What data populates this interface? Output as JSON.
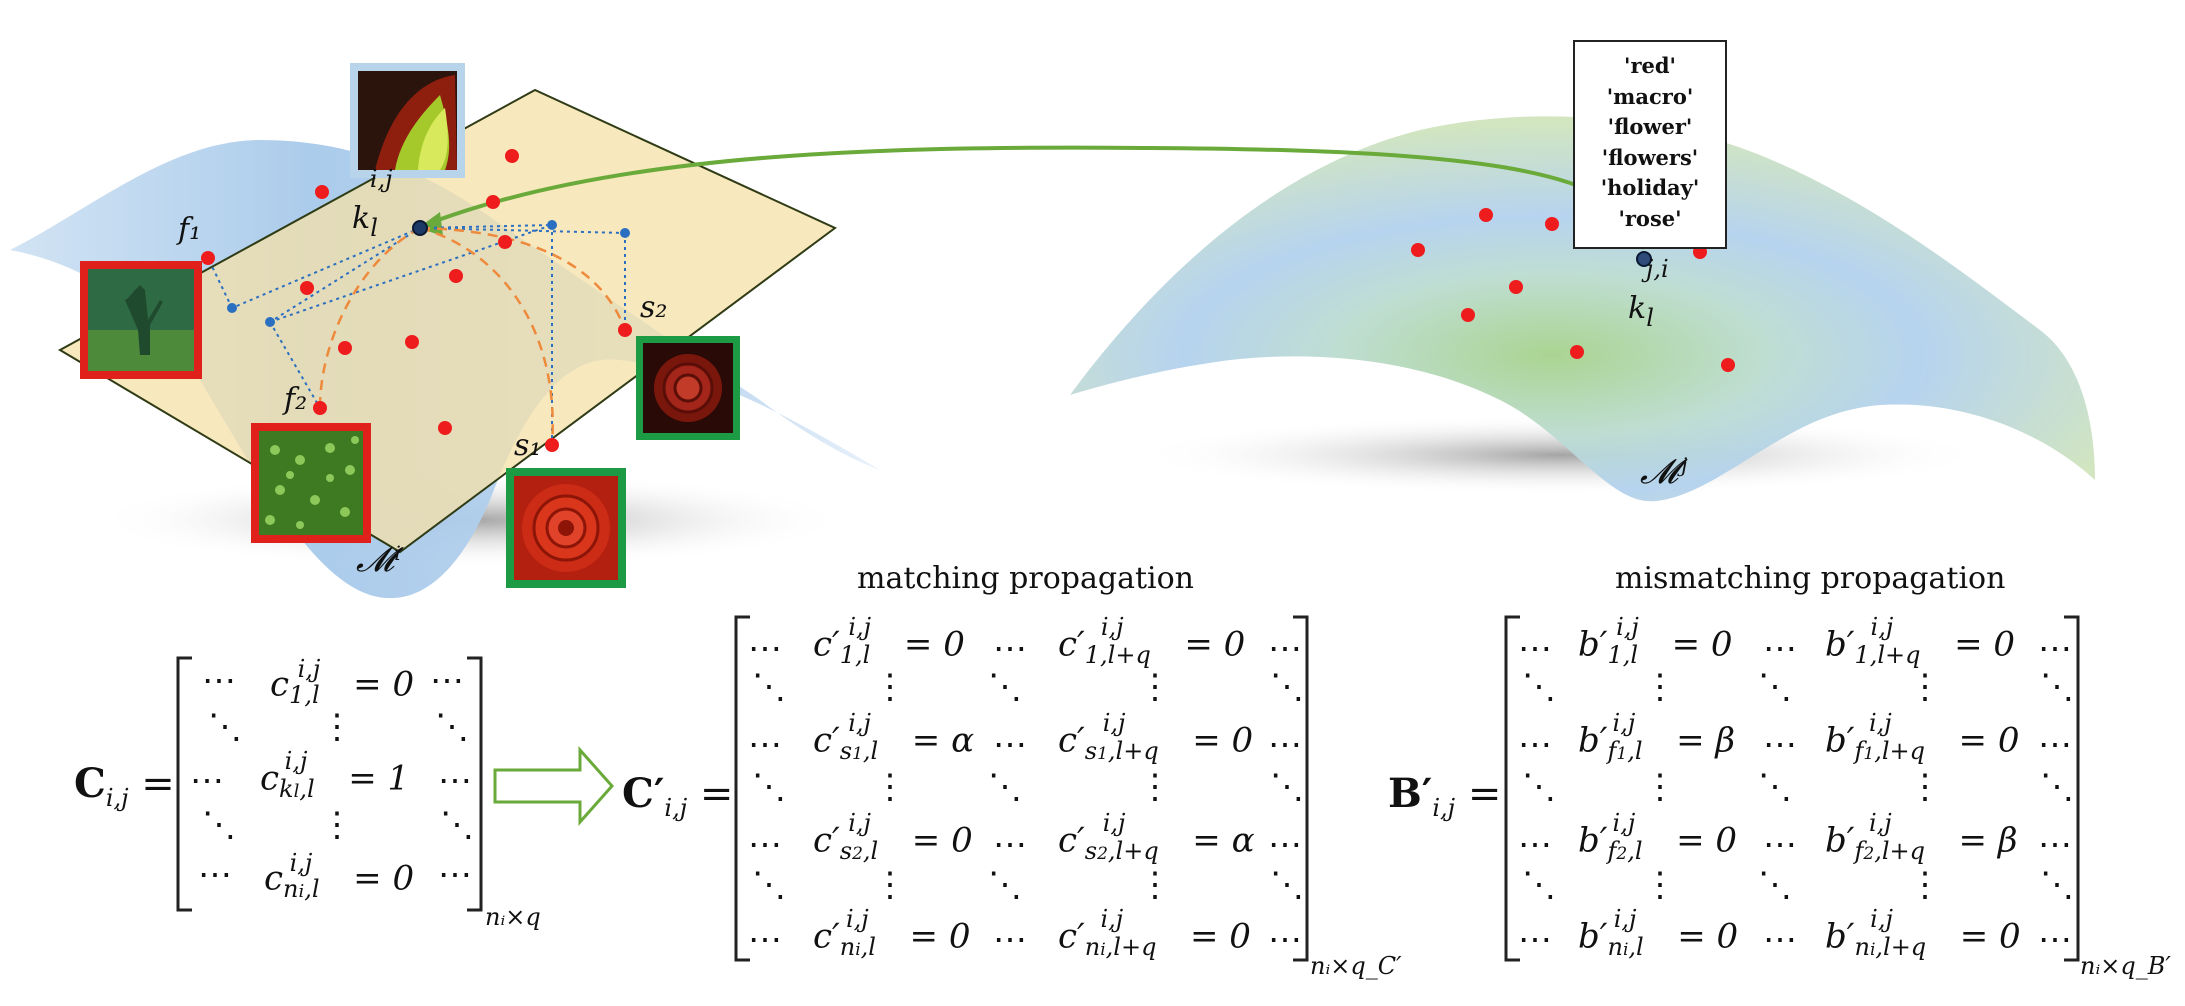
{
  "left_manifold": {
    "label": "𝓜ⁱ",
    "point_labels": {
      "f1": "f₁",
      "f2": "f₂",
      "s1": "s₁",
      "s2": "s₂",
      "k": "k"
    },
    "k_sup": "i,j",
    "k_sub": "l"
  },
  "right_manifold": {
    "label": "𝓜ʲ",
    "k_sup": "j,i",
    "k_sub": "l",
    "tags": [
      "'red'",
      "'macro'",
      "'flower'",
      "'flowers'",
      "'holiday'",
      "'rose'"
    ]
  },
  "headings": {
    "matching": "matching propagation",
    "mismatching": "mismatching propagation"
  },
  "matrix_C": {
    "lhs": "C",
    "lhs_sub": "i,j",
    "dim": "nᵢ×q",
    "rows": [
      [
        "⋯",
        "c¹,ₗ = 0",
        "⋯"
      ],
      [
        "⋱",
        "⋮",
        "⋱"
      ],
      [
        "⋯",
        "c_k,ₗ = 1",
        "⋯"
      ],
      [
        "⋱",
        "⋮",
        "⋱"
      ],
      [
        "⋯",
        "c_nᵢ,ₗ = 0",
        "⋯"
      ]
    ]
  },
  "matrix_Cp": {
    "lhs": "C′",
    "lhs_sub": "i,j",
    "dim": "nᵢ×q_C′",
    "symbols": {
      "alpha": "α",
      "beta": "β"
    }
  },
  "matrix_Bp": {
    "lhs": "B′",
    "lhs_sub": "i,j",
    "dim": "nᵢ×q_B′"
  },
  "colors": {
    "red_border": "#e0211b",
    "green_border": "#1c9a44",
    "blue_border": "#b8d4ea",
    "red_point": "#ee1c1c",
    "blue_point": "#2a6fc0",
    "arrow_green": "#6aaa3a",
    "plane": "#f4e2b0",
    "manifold_blue": "#a9cbeb",
    "manifold_green": "#c4dfa6"
  }
}
